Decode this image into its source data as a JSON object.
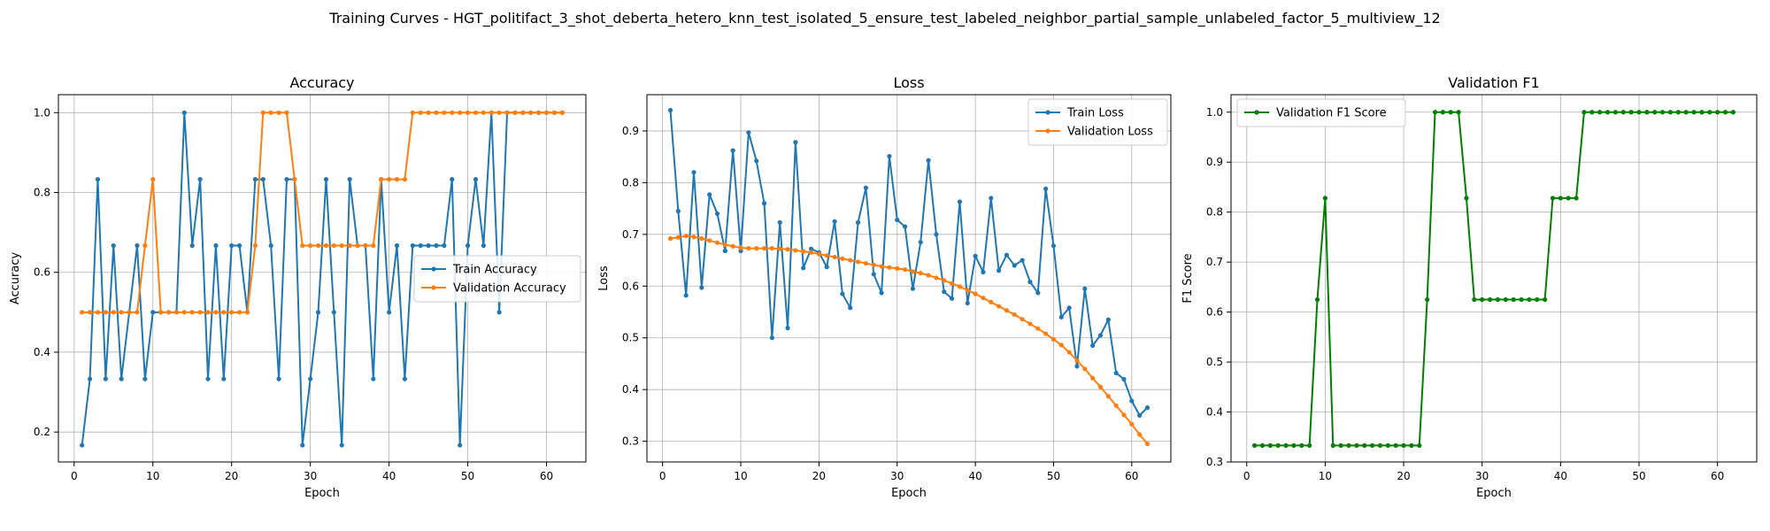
{
  "figure": {
    "suptitle": "Training Curves - HGT_politifact_3_shot_deberta_hetero_knn_test_isolated_5_ensure_test_labeled_neighbor_partial_sample_unlabeled_factor_5_multiview_12"
  },
  "colors": {
    "train": "#1f77b4",
    "validation": "#ff7f0e",
    "f1": "#008000",
    "grid": "#b0b0b0"
  },
  "chart_data": [
    {
      "type": "line",
      "title": "Accuracy",
      "xlabel": "Epoch",
      "ylabel": "Accuracy",
      "xlim": [
        -2,
        65
      ],
      "ylim": [
        0.125,
        1.045
      ],
      "xticks": [
        0,
        10,
        20,
        30,
        40,
        50,
        60
      ],
      "yticks": [
        0.2,
        0.4,
        0.6,
        0.8,
        1.0
      ],
      "ytick_labels": [
        "0.2",
        "0.4",
        "0.6",
        "0.8",
        "1.0"
      ],
      "grid": true,
      "legend": "center-right",
      "x": [
        1,
        2,
        3,
        4,
        5,
        6,
        7,
        8,
        9,
        10,
        11,
        12,
        13,
        14,
        15,
        16,
        17,
        18,
        19,
        20,
        21,
        22,
        23,
        24,
        25,
        26,
        27,
        28,
        29,
        30,
        31,
        32,
        33,
        34,
        35,
        36,
        37,
        38,
        39,
        40,
        41,
        42,
        43,
        44,
        45,
        46,
        47,
        48,
        49,
        50,
        51,
        52,
        53,
        54,
        55,
        56,
        57,
        58,
        59,
        60,
        61,
        62
      ],
      "series": [
        {
          "name": "Train Accuracy",
          "color": "#1f77b4",
          "values": [
            0.167,
            0.333,
            0.833,
            0.333,
            0.667,
            0.333,
            0.5,
            0.667,
            0.333,
            0.5,
            0.5,
            0.5,
            0.5,
            1.0,
            0.667,
            0.833,
            0.333,
            0.667,
            0.333,
            0.667,
            0.667,
            0.5,
            0.833,
            0.833,
            0.667,
            0.333,
            0.833,
            0.833,
            0.167,
            0.333,
            0.5,
            0.833,
            0.5,
            0.167,
            0.833,
            0.667,
            0.667,
            0.333,
            0.833,
            0.5,
            0.667,
            0.333,
            0.667,
            0.667,
            0.667,
            0.667,
            0.667,
            0.833,
            0.167,
            0.667,
            0.833,
            0.667,
            1.0,
            0.5,
            1.0,
            1.0,
            1.0,
            1.0,
            1.0,
            1.0,
            1.0,
            1.0
          ]
        },
        {
          "name": "Validation Accuracy",
          "color": "#ff7f0e",
          "values": [
            0.5,
            0.5,
            0.5,
            0.5,
            0.5,
            0.5,
            0.5,
            0.5,
            0.667,
            0.833,
            0.5,
            0.5,
            0.5,
            0.5,
            0.5,
            0.5,
            0.5,
            0.5,
            0.5,
            0.5,
            0.5,
            0.5,
            0.667,
            1.0,
            1.0,
            1.0,
            1.0,
            0.833,
            0.667,
            0.667,
            0.667,
            0.667,
            0.667,
            0.667,
            0.667,
            0.667,
            0.667,
            0.667,
            0.833,
            0.833,
            0.833,
            0.833,
            1.0,
            1.0,
            1.0,
            1.0,
            1.0,
            1.0,
            1.0,
            1.0,
            1.0,
            1.0,
            1.0,
            1.0,
            1.0,
            1.0,
            1.0,
            1.0,
            1.0,
            1.0,
            1.0,
            1.0
          ]
        }
      ]
    },
    {
      "type": "line",
      "title": "Loss",
      "xlabel": "Epoch",
      "ylabel": "Loss",
      "xlim": [
        -2,
        65
      ],
      "ylim": [
        0.26,
        0.97
      ],
      "xticks": [
        0,
        10,
        20,
        30,
        40,
        50,
        60
      ],
      "yticks": [
        0.3,
        0.4,
        0.5,
        0.6,
        0.7,
        0.8,
        0.9
      ],
      "ytick_labels": [
        "0.3",
        "0.4",
        "0.5",
        "0.6",
        "0.7",
        "0.8",
        "0.9"
      ],
      "grid": true,
      "legend": "top-right",
      "x": [
        1,
        2,
        3,
        4,
        5,
        6,
        7,
        8,
        9,
        10,
        11,
        12,
        13,
        14,
        15,
        16,
        17,
        18,
        19,
        20,
        21,
        22,
        23,
        24,
        25,
        26,
        27,
        28,
        29,
        30,
        31,
        32,
        33,
        34,
        35,
        36,
        37,
        38,
        39,
        40,
        41,
        42,
        43,
        44,
        45,
        46,
        47,
        48,
        49,
        50,
        51,
        52,
        53,
        54,
        55,
        56,
        57,
        58,
        59,
        60,
        61,
        62
      ],
      "series": [
        {
          "name": "Train Loss",
          "color": "#1f77b4",
          "values": [
            0.94,
            0.745,
            0.582,
            0.82,
            0.597,
            0.777,
            0.74,
            0.668,
            0.862,
            0.668,
            0.897,
            0.842,
            0.76,
            0.5,
            0.723,
            0.519,
            0.878,
            0.635,
            0.672,
            0.665,
            0.637,
            0.725,
            0.585,
            0.558,
            0.723,
            0.79,
            0.623,
            0.587,
            0.851,
            0.728,
            0.715,
            0.595,
            0.685,
            0.843,
            0.7,
            0.589,
            0.576,
            0.763,
            0.567,
            0.658,
            0.627,
            0.77,
            0.63,
            0.66,
            0.64,
            0.65,
            0.608,
            0.587,
            0.788,
            0.678,
            0.54,
            0.558,
            0.445,
            0.595,
            0.485,
            0.505,
            0.535,
            0.432,
            0.42,
            0.378,
            0.35,
            0.365
          ]
        },
        {
          "name": "Validation Loss",
          "color": "#ff7f0e",
          "values": [
            0.692,
            0.694,
            0.697,
            0.695,
            0.692,
            0.688,
            0.684,
            0.68,
            0.677,
            0.674,
            0.673,
            0.673,
            0.673,
            0.673,
            0.672,
            0.671,
            0.669,
            0.667,
            0.665,
            0.662,
            0.659,
            0.656,
            0.653,
            0.65,
            0.647,
            0.644,
            0.641,
            0.638,
            0.636,
            0.634,
            0.632,
            0.628,
            0.625,
            0.621,
            0.616,
            0.611,
            0.605,
            0.599,
            0.592,
            0.585,
            0.577,
            0.569,
            0.561,
            0.553,
            0.545,
            0.536,
            0.527,
            0.518,
            0.508,
            0.497,
            0.486,
            0.472,
            0.456,
            0.44,
            0.422,
            0.405,
            0.387,
            0.369,
            0.351,
            0.333,
            0.313,
            0.295
          ]
        }
      ]
    },
    {
      "type": "line",
      "title": "Validation F1",
      "xlabel": "Epoch",
      "ylabel": "F1 Score",
      "xlim": [
        -2,
        65
      ],
      "ylim": [
        0.3,
        1.035
      ],
      "xticks": [
        0,
        10,
        20,
        30,
        40,
        50,
        60
      ],
      "yticks": [
        0.3,
        0.4,
        0.5,
        0.6,
        0.7,
        0.8,
        0.9,
        1.0
      ],
      "ytick_labels": [
        "0.3",
        "0.4",
        "0.5",
        "0.6",
        "0.7",
        "0.8",
        "0.9",
        "1.0"
      ],
      "grid": true,
      "legend": "top-left",
      "x": [
        1,
        2,
        3,
        4,
        5,
        6,
        7,
        8,
        9,
        10,
        11,
        12,
        13,
        14,
        15,
        16,
        17,
        18,
        19,
        20,
        21,
        22,
        23,
        24,
        25,
        26,
        27,
        28,
        29,
        30,
        31,
        32,
        33,
        34,
        35,
        36,
        37,
        38,
        39,
        40,
        41,
        42,
        43,
        44,
        45,
        46,
        47,
        48,
        49,
        50,
        51,
        52,
        53,
        54,
        55,
        56,
        57,
        58,
        59,
        60,
        61,
        62
      ],
      "series": [
        {
          "name": "Validation F1 Score",
          "color": "#008000",
          "values": [
            0.333,
            0.333,
            0.333,
            0.333,
            0.333,
            0.333,
            0.333,
            0.333,
            0.625,
            0.828,
            0.333,
            0.333,
            0.333,
            0.333,
            0.333,
            0.333,
            0.333,
            0.333,
            0.333,
            0.333,
            0.333,
            0.333,
            0.625,
            1.0,
            1.0,
            1.0,
            1.0,
            0.828,
            0.625,
            0.625,
            0.625,
            0.625,
            0.625,
            0.625,
            0.625,
            0.625,
            0.625,
            0.625,
            0.828,
            0.828,
            0.828,
            0.828,
            1.0,
            1.0,
            1.0,
            1.0,
            1.0,
            1.0,
            1.0,
            1.0,
            1.0,
            1.0,
            1.0,
            1.0,
            1.0,
            1.0,
            1.0,
            1.0,
            1.0,
            1.0,
            1.0,
            1.0
          ]
        }
      ]
    }
  ]
}
